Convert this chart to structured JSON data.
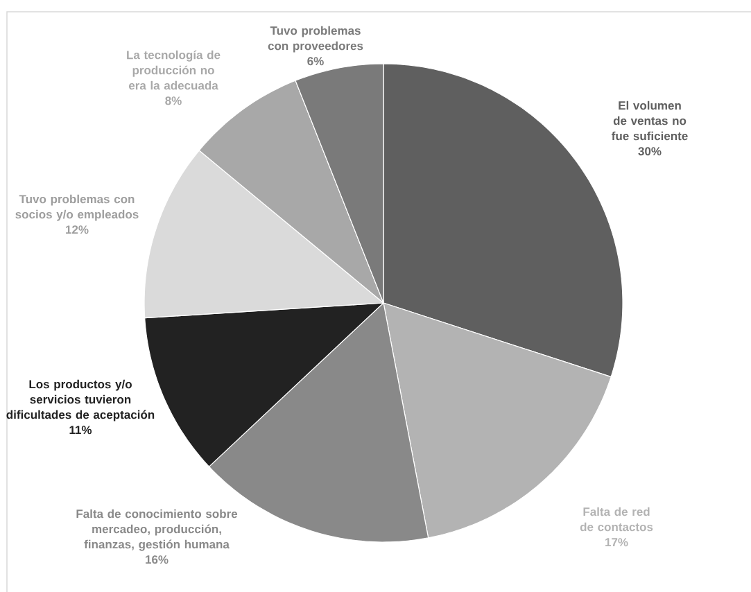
{
  "chart_data": {
    "type": "pie",
    "categories": [
      "El volumen de ventas no fue suficiente",
      "Falta de red de contactos",
      "Falta de conocimiento sobre mercadeo, producción, finanzas, gestión humana",
      "Los productos y/o servicios tuvieron dificultades de aceptación",
      "Tuvo problemas con socios y/o empleados",
      "La tecnología de producción no era la adecuada",
      "Tuvo problemas con proveedores"
    ],
    "values": [
      30,
      17,
      16,
      11,
      12,
      8,
      6
    ],
    "value_labels": [
      "30%",
      "17%",
      "16%",
      "11%",
      "12%",
      "8%",
      "6%"
    ],
    "colors": [
      "#5f5f5f",
      "#b3b3b3",
      "#898989",
      "#222222",
      "#dadada",
      "#a8a8a8",
      "#7a7a7a"
    ]
  }
}
